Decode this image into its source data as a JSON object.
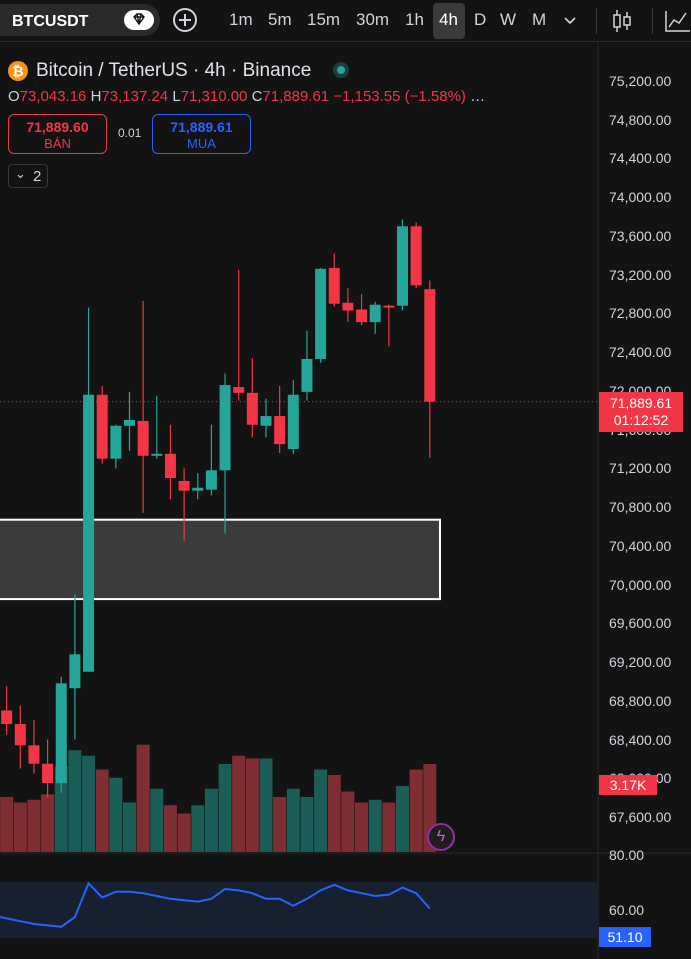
{
  "toolbar": {
    "symbol": "BTCUSDT",
    "timeframes": [
      "1m",
      "5m",
      "15m",
      "30m",
      "1h",
      "4h",
      "D",
      "W",
      "M"
    ],
    "active_timeframe": "4h"
  },
  "legend": {
    "title": "Bitcoin / TetherUS · 4h · Binance",
    "open_key": "O",
    "open": "73,043.16",
    "high_key": "H",
    "high": "73,137.24",
    "low_key": "L",
    "low": "71,310.00",
    "close_key": "C",
    "close": "71,889.61",
    "change": "−1,153.55 (−1.58%)",
    "more": "…"
  },
  "trade": {
    "sell_price": "71,889.60",
    "sell_label": "BÁN",
    "spread": "0.01",
    "buy_price": "71,889.61",
    "buy_label": "MUA"
  },
  "indicators_count": "2",
  "price_axis": {
    "labels": [
      "75,200.00",
      "74,800.00",
      "74,400.00",
      "74,000.00",
      "73,600.00",
      "73,200.00",
      "72,800.00",
      "72,400.00",
      "72,000.00",
      "71,600.00",
      "71,200.00",
      "70,800.00",
      "70,400.00",
      "70,000.00",
      "69,600.00",
      "69,200.00",
      "68,800.00",
      "68,400.00",
      "68,000.00",
      "67,600.00"
    ],
    "current_price": "71,889.61",
    "countdown": "01:12:52",
    "volume_tag": "3.17K"
  },
  "rsi": {
    "axis_labels": [
      "80.00",
      "60.00"
    ],
    "current": "51.10"
  },
  "colors": {
    "up": "#26a69a",
    "down": "#f23645",
    "rsi_line": "#2962ff",
    "background": "#131313"
  },
  "icons": {
    "symbol_search": "diamond-icon",
    "add": "plus-circle-icon",
    "chart_type": "candles-icon",
    "indicators": "chart-indicators-icon",
    "live": "live-dot-icon",
    "coin": "bitcoin-icon",
    "bolt": "lightning-icon"
  },
  "chart_data": {
    "type": "candlestick",
    "y_unit": "USDT",
    "ylim": [
      67400,
      75400
    ],
    "candles": [
      {
        "o": 68800,
        "h": 69050,
        "l": 68600,
        "c": 68720
      },
      {
        "o": 68700,
        "h": 68950,
        "l": 68450,
        "c": 68560
      },
      {
        "o": 68560,
        "h": 68750,
        "l": 68100,
        "c": 68340
      },
      {
        "o": 68340,
        "h": 68600,
        "l": 68050,
        "c": 68150
      },
      {
        "o": 68150,
        "h": 68400,
        "l": 67800,
        "c": 67950
      },
      {
        "o": 67950,
        "h": 69050,
        "l": 67850,
        "c": 68980
      },
      {
        "o": 68930,
        "h": 69900,
        "l": 68400,
        "c": 69280
      },
      {
        "o": 69100,
        "h": 72860,
        "l": 69100,
        "c": 71960
      },
      {
        "o": 71960,
        "h": 72050,
        "l": 71250,
        "c": 71300
      },
      {
        "o": 71300,
        "h": 71650,
        "l": 71200,
        "c": 71640
      },
      {
        "o": 71640,
        "h": 71990,
        "l": 71380,
        "c": 71700
      },
      {
        "o": 71690,
        "h": 72930,
        "l": 70740,
        "c": 71330
      },
      {
        "o": 71330,
        "h": 71950,
        "l": 71300,
        "c": 71350
      },
      {
        "o": 71350,
        "h": 71650,
        "l": 70880,
        "c": 71100
      },
      {
        "o": 71070,
        "h": 71200,
        "l": 70450,
        "c": 70970
      },
      {
        "o": 70970,
        "h": 71150,
        "l": 70880,
        "c": 71000
      },
      {
        "o": 70980,
        "h": 71650,
        "l": 70920,
        "c": 71180
      },
      {
        "o": 71180,
        "h": 72180,
        "l": 70530,
        "c": 72060
      },
      {
        "o": 72040,
        "h": 73250,
        "l": 71900,
        "c": 71980
      },
      {
        "o": 71980,
        "h": 72340,
        "l": 71520,
        "c": 71650
      },
      {
        "o": 71640,
        "h": 71920,
        "l": 71520,
        "c": 71740
      },
      {
        "o": 71740,
        "h": 72050,
        "l": 71360,
        "c": 71450
      },
      {
        "o": 71400,
        "h": 72110,
        "l": 71350,
        "c": 71960
      },
      {
        "o": 71990,
        "h": 72620,
        "l": 71900,
        "c": 72330
      },
      {
        "o": 72330,
        "h": 73270,
        "l": 72290,
        "c": 73260
      },
      {
        "o": 73270,
        "h": 73420,
        "l": 72870,
        "c": 72900
      },
      {
        "o": 72910,
        "h": 73060,
        "l": 72710,
        "c": 72830
      },
      {
        "o": 72840,
        "h": 73000,
        "l": 72680,
        "c": 72710
      },
      {
        "o": 72710,
        "h": 72920,
        "l": 72590,
        "c": 72890
      },
      {
        "o": 72880,
        "h": 72890,
        "l": 72460,
        "c": 72860
      },
      {
        "o": 72880,
        "h": 73770,
        "l": 72830,
        "c": 73700
      },
      {
        "o": 73700,
        "h": 73740,
        "l": 73060,
        "c": 73090
      },
      {
        "o": 73050,
        "h": 73140,
        "l": 71310,
        "c": 71890
      }
    ],
    "volume": [
      18,
      20,
      18,
      19,
      21,
      31,
      37,
      35,
      30,
      27,
      18,
      39,
      23,
      17,
      14,
      17,
      23,
      32,
      35,
      34,
      34,
      20,
      23,
      20,
      30,
      28,
      22,
      18,
      19,
      18,
      24,
      30,
      32
    ],
    "rsi": [
      46,
      44,
      42,
      40,
      39,
      38,
      45,
      69,
      59,
      63,
      63,
      62,
      60,
      58,
      57,
      56,
      58,
      65,
      64,
      62,
      58,
      58,
      53,
      58,
      64,
      68,
      64,
      62,
      60,
      61,
      66,
      62,
      51
    ],
    "supply_zone": [
      69850,
      70670
    ]
  }
}
